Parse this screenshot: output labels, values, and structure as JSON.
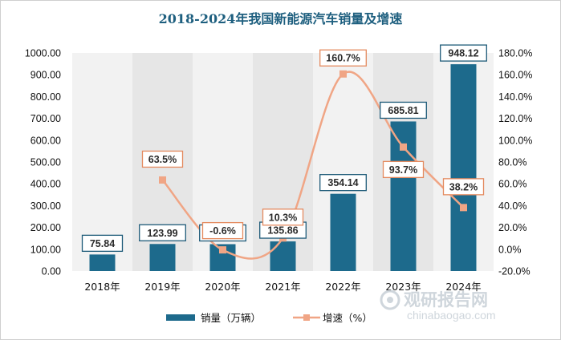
{
  "chart_data": {
    "type": "bar",
    "title": "2018-2024年我国新能源汽车销量及增速",
    "categories": [
      "2018年",
      "2019年",
      "2020年",
      "2021年",
      "2022年",
      "2023年",
      "2024年"
    ],
    "series": [
      {
        "name": "销量（万辆）",
        "type": "bar",
        "axis": "left",
        "color": "#1d6a8c",
        "values": [
          75.84,
          123.99,
          123.2,
          135.86,
          354.14,
          685.81,
          948.12
        ],
        "labels": [
          "75.84",
          "123.99",
          "123.20",
          "135.86",
          "354.14",
          "685.81",
          "948.12"
        ]
      },
      {
        "name": "增速（%）",
        "type": "line",
        "axis": "right",
        "color": "#f0a585",
        "values": [
          null,
          63.5,
          -0.6,
          10.3,
          160.7,
          93.7,
          38.2
        ],
        "labels": [
          "",
          "63.5%",
          "-0.6%",
          "10.3%",
          "160.7%",
          "93.7%",
          "38.2%"
        ]
      }
    ],
    "y_left": {
      "min": 0,
      "max": 1000,
      "ticks": [
        "0.00",
        "100.00",
        "200.00",
        "300.00",
        "400.00",
        "500.00",
        "600.00",
        "700.00",
        "800.00",
        "900.00",
        "1000.00"
      ]
    },
    "y_right": {
      "min": -20,
      "max": 180,
      "ticks": [
        "-20.0%",
        "0.0%",
        "20.0%",
        "40.0%",
        "60.0%",
        "80.0%",
        "100.0%",
        "120.0%",
        "140.0%",
        "160.0%",
        "180.0%"
      ]
    },
    "legend_position": "bottom",
    "grid": "vertical-bands"
  },
  "watermark": {
    "title": "观研报告网",
    "url": "chinabaogao.com"
  }
}
